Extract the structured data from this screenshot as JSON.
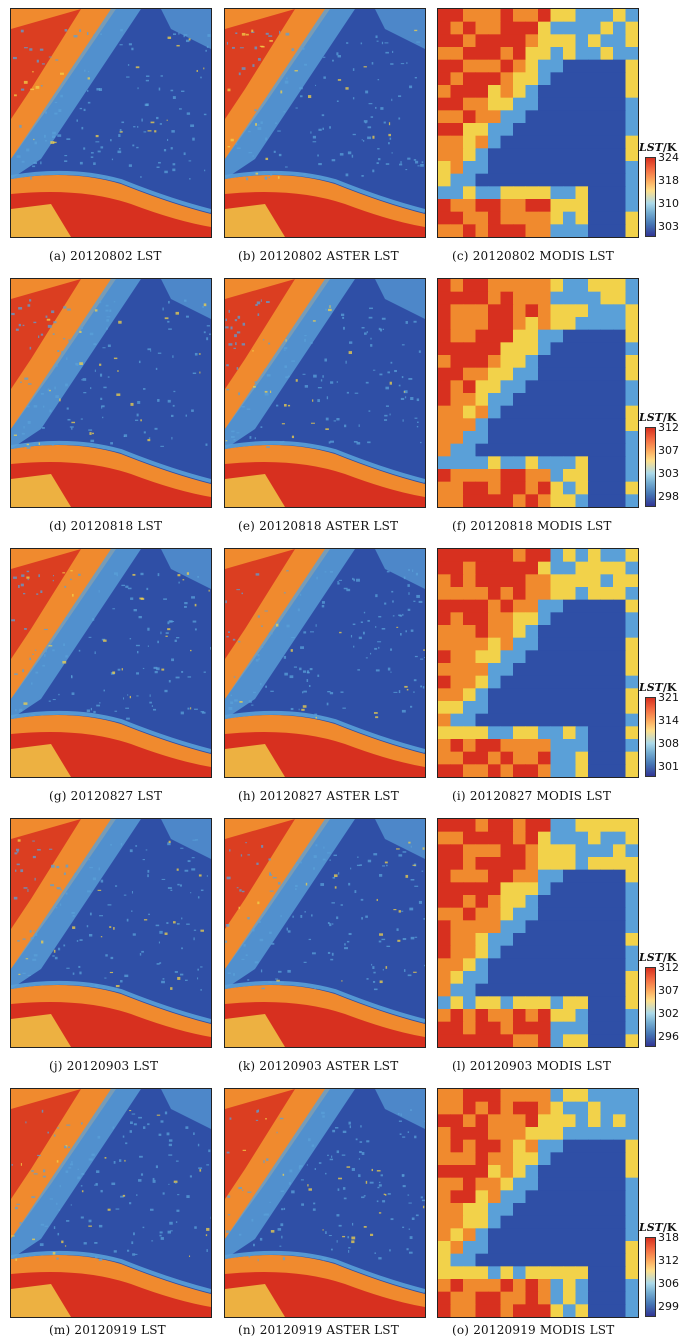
{
  "figure": {
    "rows": [
      {
        "captions": [
          "(a) 20120802 LST",
          "(b) 20120802 ASTER LST",
          "(c) 20120802 MODIS LST"
        ],
        "colorbar": {
          "title_var": "LST",
          "title_unit": "/K",
          "ticks": [
            "324",
            "318",
            "310",
            "303"
          ]
        }
      },
      {
        "captions": [
          "(d) 20120818 LST",
          "(e) 20120818 ASTER LST",
          "(f) 20120818 MODIS LST"
        ],
        "colorbar": {
          "title_var": "LST",
          "title_unit": "/K",
          "ticks": [
            "312",
            "307",
            "303",
            "298"
          ]
        }
      },
      {
        "captions": [
          "(g) 20120827 LST",
          "(h) 20120827 ASTER LST",
          "(i) 20120827 MODIS LST"
        ],
        "colorbar": {
          "title_var": "LST",
          "title_unit": "/K",
          "ticks": [
            "321",
            "314",
            "308",
            "301"
          ]
        }
      },
      {
        "captions": [
          "(j) 20120903 LST",
          "(k) 20120903 ASTER LST",
          "(l) 20120903 MODIS LST"
        ],
        "colorbar": {
          "title_var": "LST",
          "title_unit": "/K",
          "ticks": [
            "312",
            "307",
            "302",
            "296"
          ]
        }
      },
      {
        "captions": [
          "(m) 20120919 LST",
          "(n) 20120919 ASTER LST",
          "(o) 20120919 MODIS LST"
        ],
        "colorbar": {
          "title_var": "LST",
          "title_unit": "/K",
          "ticks": [
            "318",
            "312",
            "306",
            "299"
          ]
        }
      }
    ],
    "colors": {
      "cold": "#2f4fa6",
      "cool": "#5aa0d8",
      "mild": "#f2d24a",
      "warm": "#f08a2e",
      "hot": "#d7301f"
    }
  }
}
